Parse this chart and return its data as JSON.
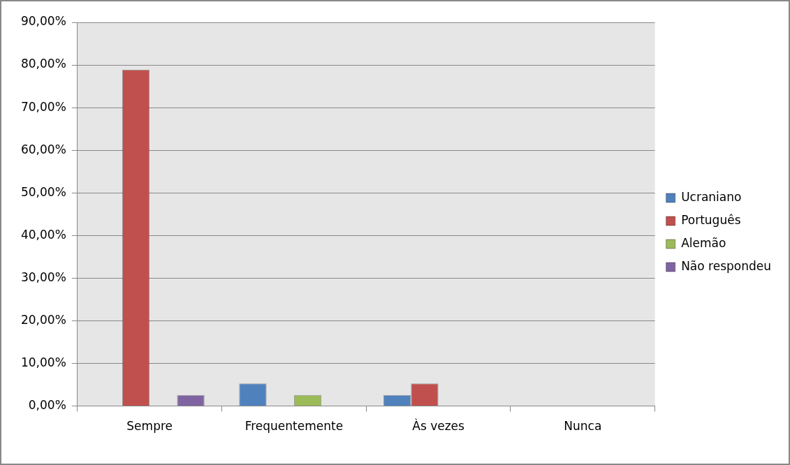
{
  "chart_data": {
    "type": "bar",
    "categories": [
      "Sempre",
      "Frequentemente",
      "Às vezes",
      "Nunca"
    ],
    "series": [
      {
        "name": "Ucraniano",
        "color": "#4f81bd",
        "values": [
          0,
          5.3,
          2.6,
          0
        ]
      },
      {
        "name": "Português",
        "color": "#c0504d",
        "values": [
          78.9,
          0,
          5.3,
          0
        ]
      },
      {
        "name": "Alemão",
        "color": "#9bbb59",
        "values": [
          0,
          2.6,
          0,
          0
        ]
      },
      {
        "name": "Não respondeu",
        "color": "#8064a2",
        "values": [
          2.6,
          0,
          0,
          0
        ]
      }
    ],
    "ylim": [
      0,
      90
    ],
    "yticks": [
      {
        "value": 0,
        "label": "0,00%"
      },
      {
        "value": 10,
        "label": "10,00%"
      },
      {
        "value": 20,
        "label": "20,00%"
      },
      {
        "value": 30,
        "label": "30,00%"
      },
      {
        "value": 40,
        "label": "40,00%"
      },
      {
        "value": 50,
        "label": "50,00%"
      },
      {
        "value": 60,
        "label": "60,00%"
      },
      {
        "value": 70,
        "label": "70,00%"
      },
      {
        "value": 80,
        "label": "80,00%"
      },
      {
        "value": 90,
        "label": "90,00%"
      }
    ],
    "grid": "y",
    "legend": "right"
  }
}
